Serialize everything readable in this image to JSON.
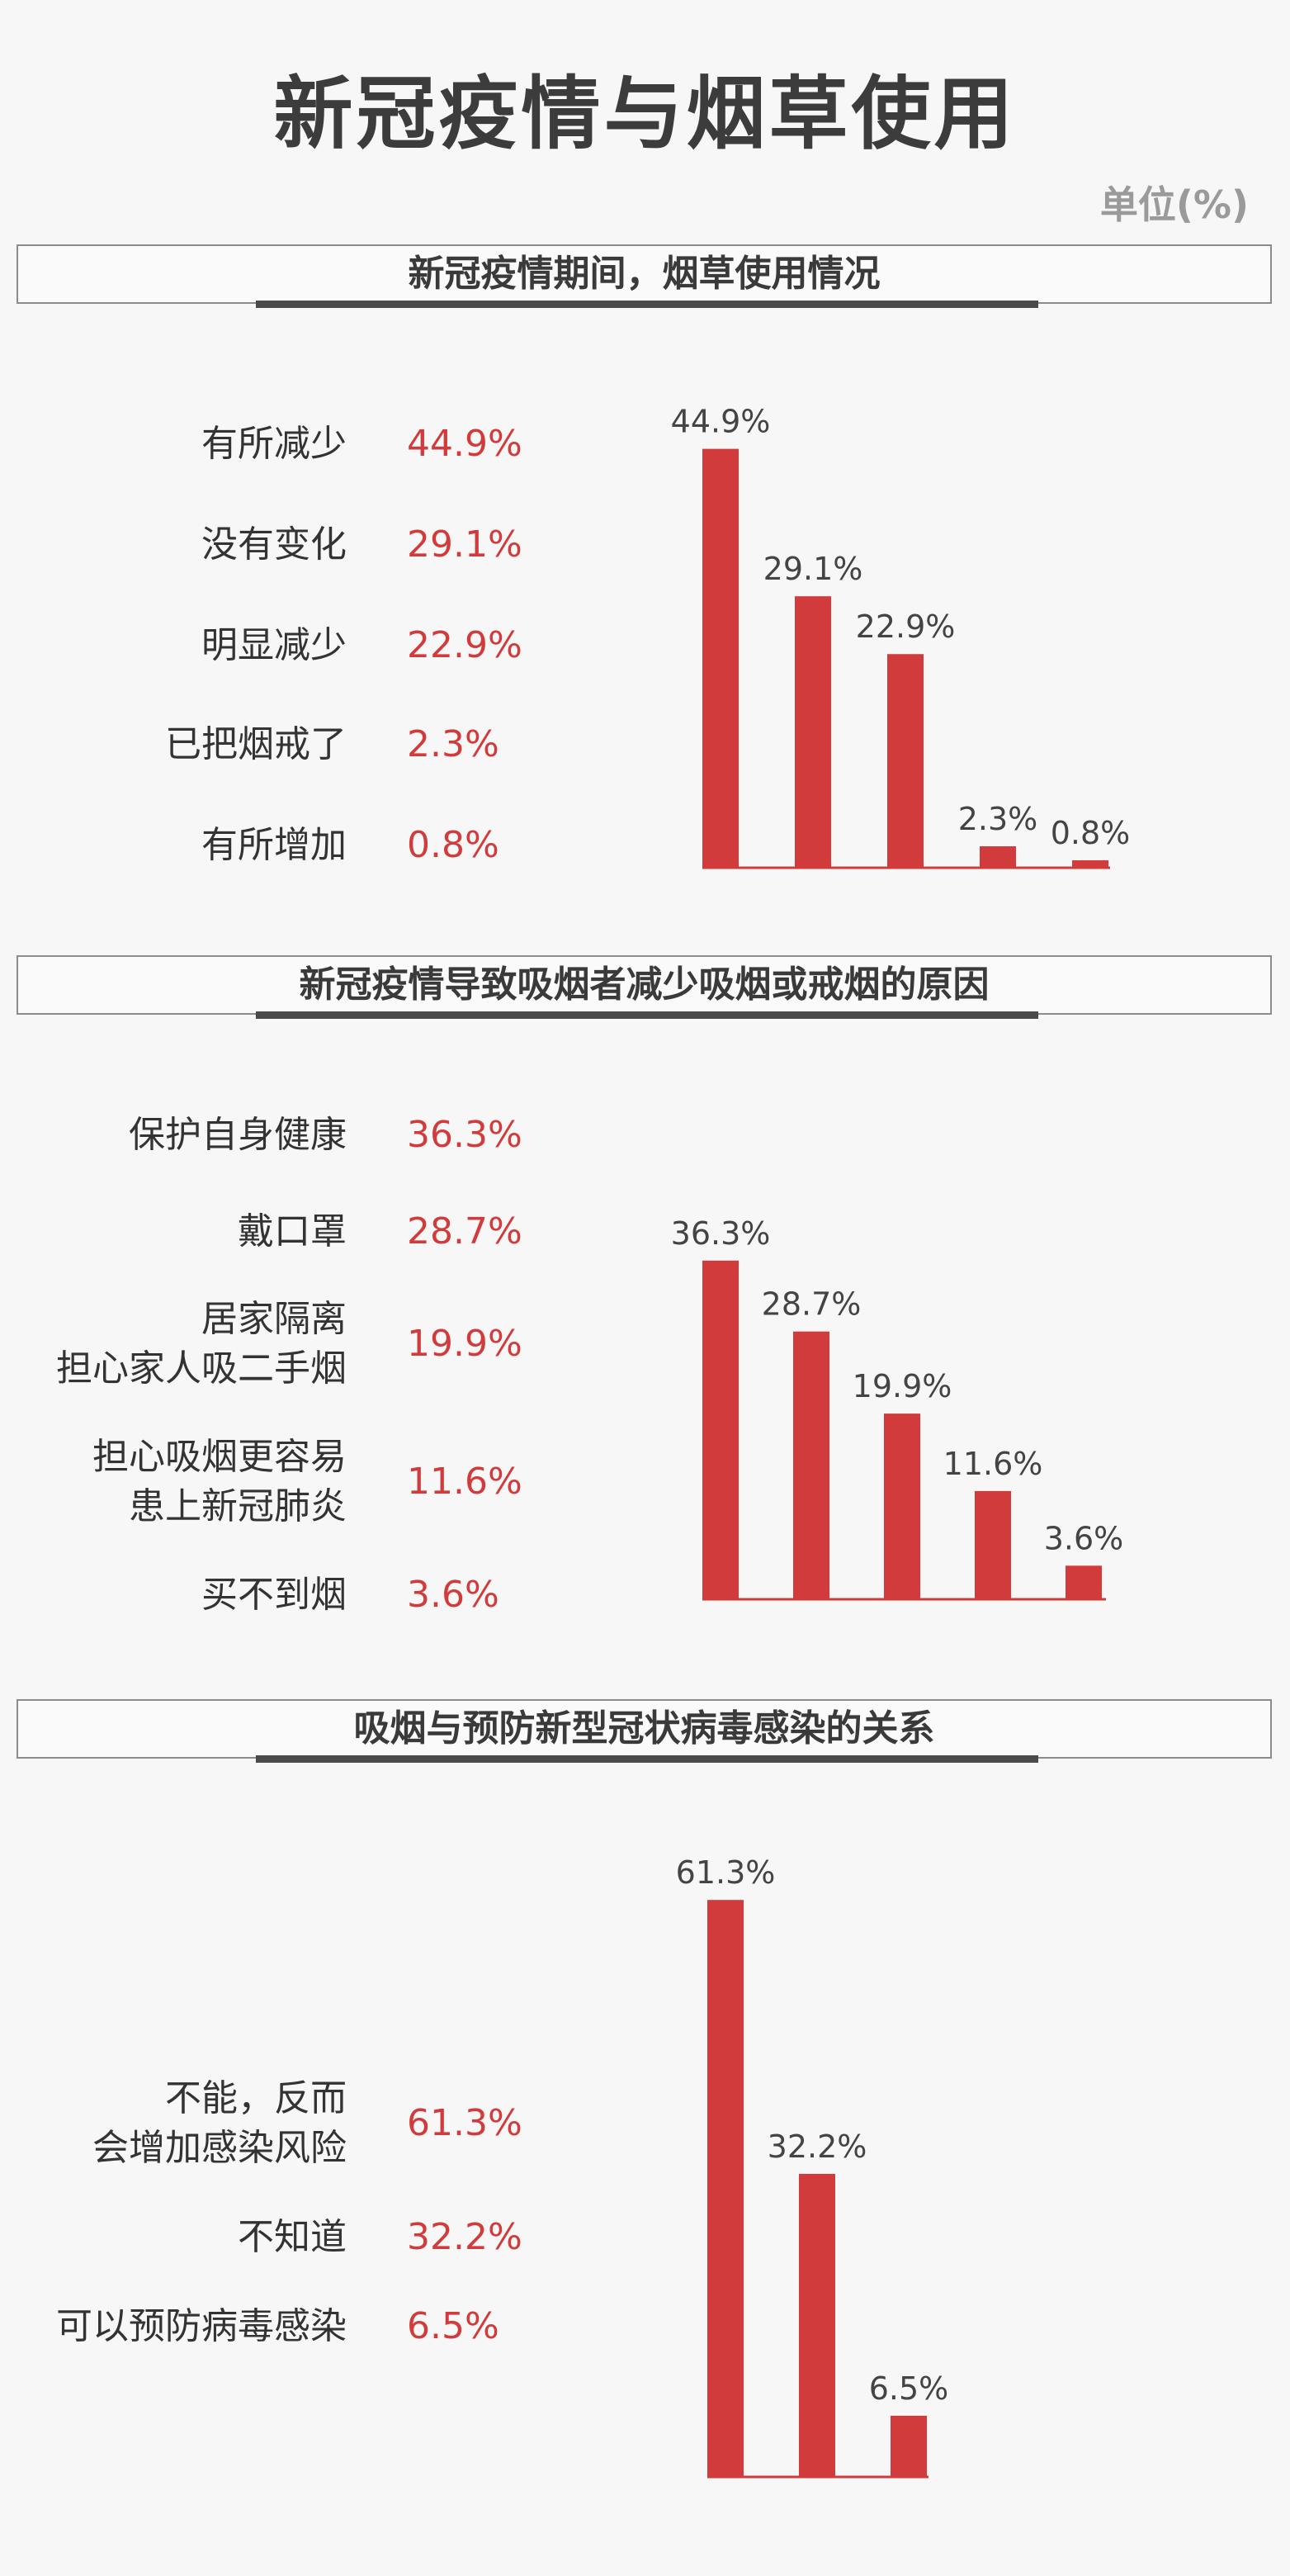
{
  "title": "新冠疫情与烟草使用",
  "unit": "单位(%)",
  "colors": {
    "bar": "#d23b3b",
    "pct_text": "#d23b3b",
    "baseline": "#d23b3b"
  },
  "chart_data": [
    {
      "type": "bar",
      "title": "新冠疫情期间，烟草使用情况",
      "categories": [
        "有所减少",
        "没有变化",
        "明显减少",
        "已把烟戒了",
        "有所增加"
      ],
      "values": [
        44.9,
        29.1,
        22.9,
        2.3,
        0.8
      ],
      "value_labels": [
        "44.9%",
        "29.1%",
        "22.9%",
        "2.3%",
        "0.8%"
      ],
      "ylim": [
        0,
        100
      ]
    },
    {
      "type": "bar",
      "title": "新冠疫情导致吸烟者减少吸烟或戒烟的原因",
      "categories": [
        "保护自身健康",
        "戴口罩",
        "居家隔离\n担心家人吸二手烟",
        "担心吸烟更容易\n患上新冠肺炎",
        "买不到烟"
      ],
      "values": [
        36.3,
        28.7,
        19.9,
        11.6,
        3.6
      ],
      "value_labels": [
        "36.3%",
        "28.7%",
        "19.9%",
        "11.6%",
        "3.6%"
      ],
      "ylim": [
        0,
        100
      ]
    },
    {
      "type": "bar",
      "title": "吸烟与预防新型冠状病毒感染的关系",
      "categories": [
        "不能，反而\n会增加感染风险",
        "不知道",
        "可以预防病毒感染"
      ],
      "values": [
        61.3,
        32.2,
        6.5
      ],
      "value_labels": [
        "61.3%",
        "32.2%",
        "6.5%"
      ],
      "ylim": [
        0,
        100
      ]
    }
  ]
}
